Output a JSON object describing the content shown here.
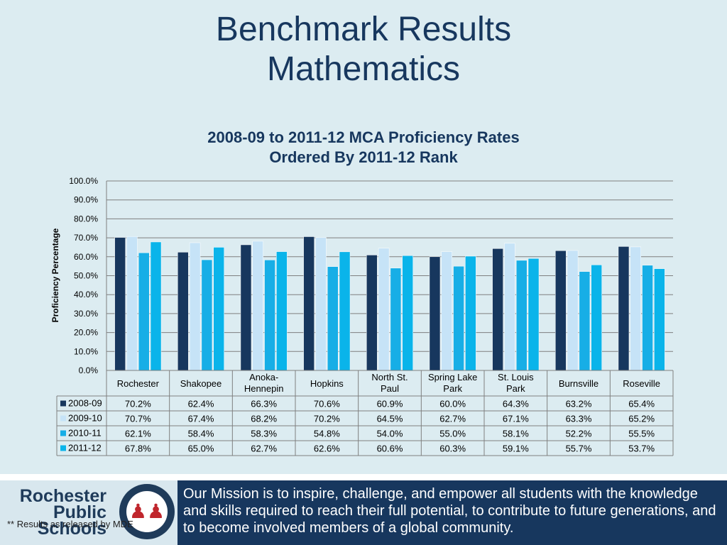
{
  "slide": {
    "title_line1": "Benchmark Results",
    "title_line2": "Mathematics"
  },
  "chart_data": {
    "type": "bar",
    "title": "2008-09 to 2011-12 MCA Proficiency Rates",
    "subtitle": "Ordered By 2011-12 Rank",
    "ylabel": "Proficiency Percentage",
    "xlabel": "",
    "ylim": [
      0,
      100
    ],
    "yticks": [
      "0.0%",
      "10.0%",
      "20.0%",
      "30.0%",
      "40.0%",
      "50.0%",
      "60.0%",
      "70.0%",
      "80.0%",
      "90.0%",
      "100.0%"
    ],
    "grid": true,
    "legend_placement": "table-below",
    "categories": [
      "Rochester",
      "Shakopee",
      "Anoka-Hennepin",
      "Hopkins",
      "North St. Paul",
      "Spring Lake Park",
      "St. Louis Park",
      "Burnsville",
      "Roseville"
    ],
    "series": [
      {
        "name": "2008-09",
        "color": "#17375e",
        "values": [
          70.2,
          62.4,
          66.3,
          70.6,
          60.9,
          60.0,
          64.3,
          63.2,
          65.4
        ],
        "labels": [
          "70.2%",
          "62.4%",
          "66.3%",
          "70.6%",
          "60.9%",
          "60.0%",
          "64.3%",
          "63.2%",
          "65.4%"
        ]
      },
      {
        "name": "2009-10",
        "color": "#c6e3f7",
        "values": [
          70.7,
          67.4,
          68.2,
          70.2,
          64.5,
          62.7,
          67.1,
          63.3,
          65.2
        ],
        "labels": [
          "70.7%",
          "67.4%",
          "68.2%",
          "70.2%",
          "64.5%",
          "62.7%",
          "67.1%",
          "63.3%",
          "65.2%"
        ]
      },
      {
        "name": "2010-11",
        "color": "#17aee6",
        "values": [
          62.1,
          58.4,
          58.3,
          54.8,
          54.0,
          55.0,
          58.1,
          52.2,
          55.5
        ],
        "labels": [
          "62.1%",
          "58.4%",
          "58.3%",
          "54.8%",
          "54.0%",
          "55.0%",
          "58.1%",
          "52.2%",
          "55.5%"
        ]
      },
      {
        "name": "2011-12",
        "color": "#0ab4ea",
        "values": [
          67.8,
          65.0,
          62.7,
          62.6,
          60.6,
          60.3,
          59.1,
          55.7,
          53.7
        ],
        "labels": [
          "67.8%",
          "65.0%",
          "62.7%",
          "62.6%",
          "60.6%",
          "60.3%",
          "59.1%",
          "55.7%",
          "53.7%"
        ]
      }
    ]
  },
  "footer": {
    "logo_line1": "Rochester",
    "logo_line2": "Public",
    "logo_line3": "Schools",
    "seal_text": "ROCHESTER PUBLIC SCHOOLS",
    "mission": "Our Mission is to inspire, challenge, and empower all students with the knowledge and skills required to reach their full potential, to contribute to future generations, and to become involved members of a global community.",
    "footnote": "**  Results as released by MDE"
  }
}
